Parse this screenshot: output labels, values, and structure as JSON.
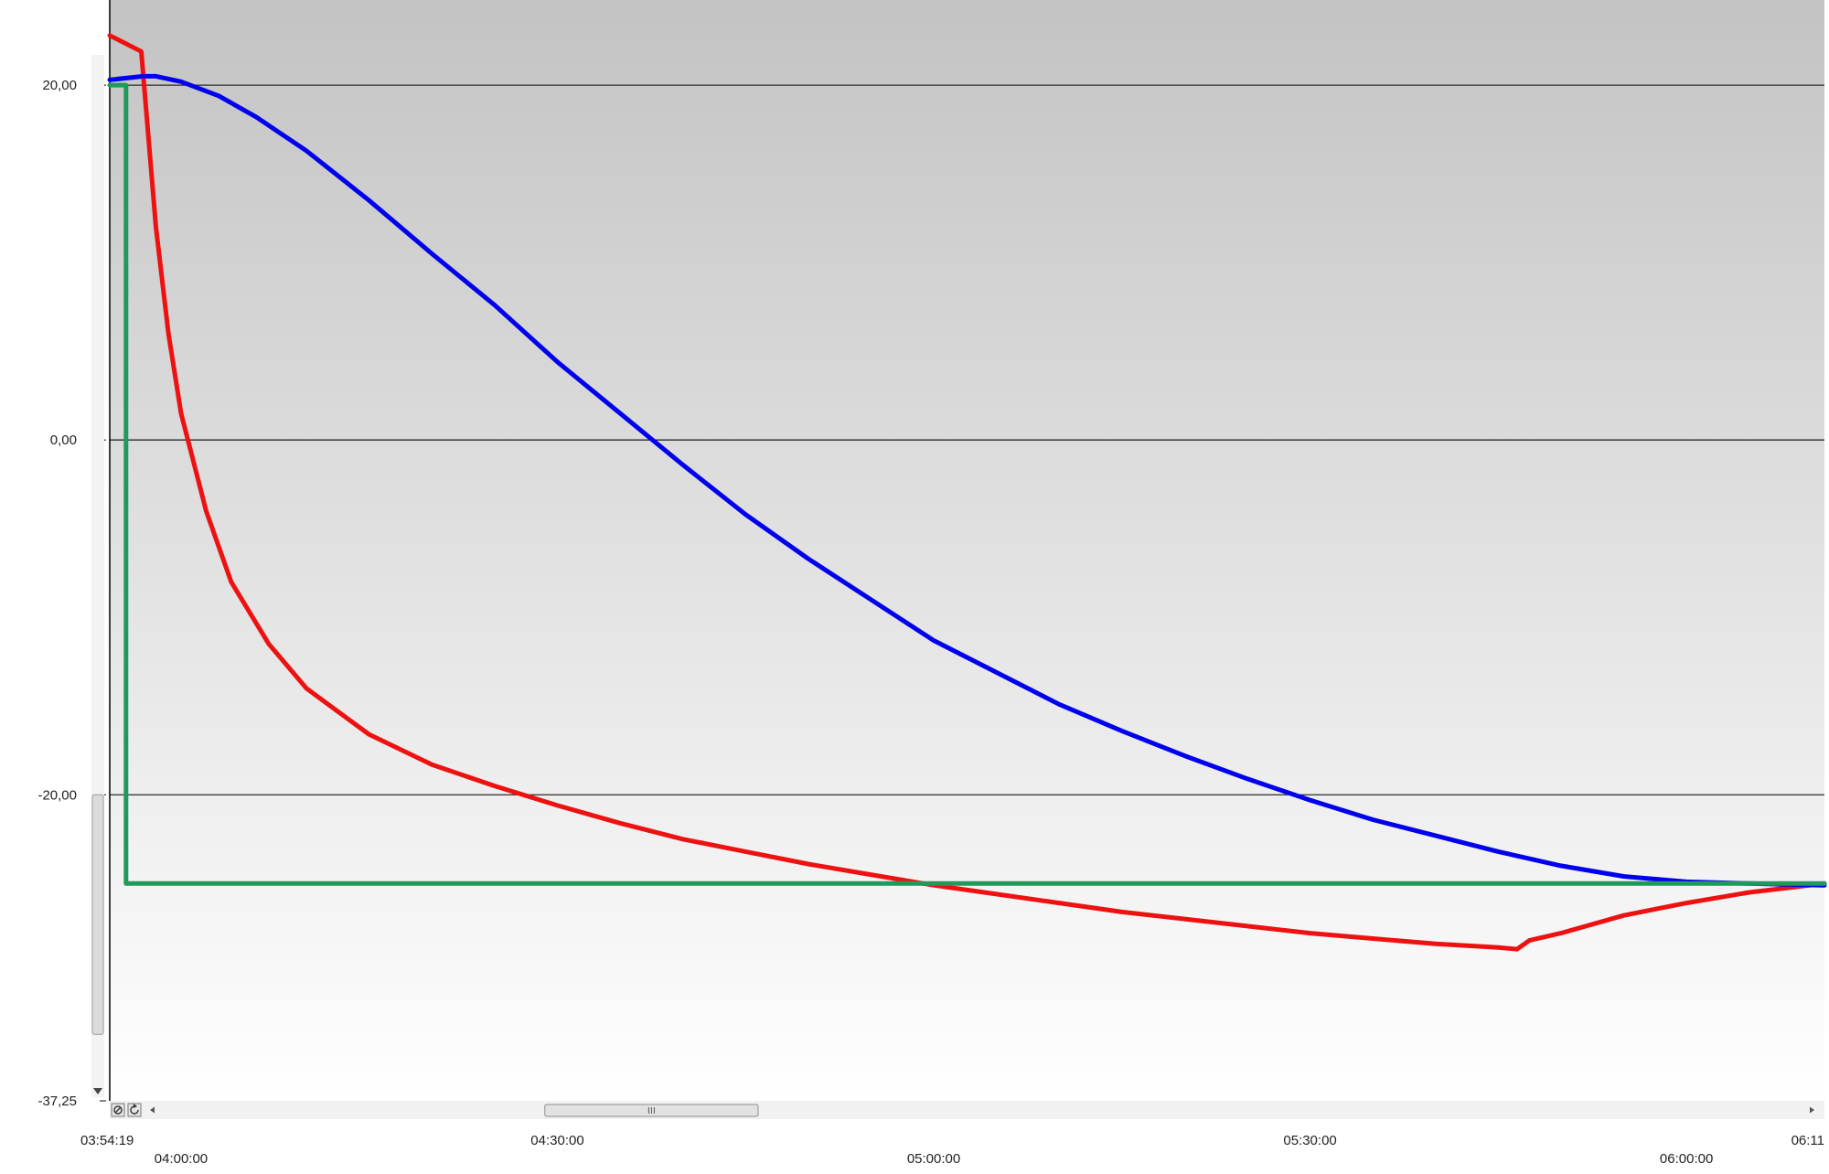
{
  "chart_data": {
    "type": "line",
    "title": "",
    "xlabel": "",
    "ylabel": "",
    "ylim": [
      -37.25,
      24.8
    ],
    "xlim": [
      "03:54:19",
      "06:11:00"
    ],
    "grid": {
      "horizontal": true,
      "vertical": false
    },
    "legend": "none",
    "y_ticks": [
      {
        "value": 20,
        "label": "20,00"
      },
      {
        "value": 0,
        "label": "0,00"
      },
      {
        "value": -20,
        "label": "-20,00"
      },
      {
        "value": -37.25,
        "label": "-37,25"
      }
    ],
    "x_ticks": [
      {
        "time": "03:54:19",
        "label": "03:54:19",
        "row": 1,
        "anchor": "start"
      },
      {
        "time": "04:00:00",
        "label": "04:00:00",
        "row": 2,
        "anchor": "middle"
      },
      {
        "time": "04:30:00",
        "label": "04:30:00",
        "row": 1,
        "anchor": "middle"
      },
      {
        "time": "05:00:00",
        "label": "05:00:00",
        "row": 2,
        "anchor": "middle"
      },
      {
        "time": "05:30:00",
        "label": "05:30:00",
        "row": 1,
        "anchor": "middle"
      },
      {
        "time": "06:00:00",
        "label": "06:00:00",
        "row": 2,
        "anchor": "middle"
      },
      {
        "time": "06:11:00",
        "label": "06:11",
        "row": 1,
        "anchor": "end"
      }
    ],
    "series": [
      {
        "color": "#ee1111",
        "points": [
          [
            "03:54:19",
            22.8
          ],
          [
            "03:56:50",
            21.9
          ],
          [
            "03:58:00",
            12.0
          ],
          [
            "03:59:00",
            6.0
          ],
          [
            "04:00:00",
            1.5
          ],
          [
            "04:02:00",
            -4.0
          ],
          [
            "04:04:00",
            -8.0
          ],
          [
            "04:07:00",
            -11.5
          ],
          [
            "04:10:00",
            -14.0
          ],
          [
            "04:15:00",
            -16.6
          ],
          [
            "04:20:00",
            -18.3
          ],
          [
            "04:25:00",
            -19.5
          ],
          [
            "04:30:00",
            -20.6
          ],
          [
            "04:35:00",
            -21.6
          ],
          [
            "04:40:00",
            -22.5
          ],
          [
            "04:45:00",
            -23.2
          ],
          [
            "04:50:00",
            -23.9
          ],
          [
            "04:55:00",
            -24.5
          ],
          [
            "05:00:00",
            -25.1
          ],
          [
            "05:05:00",
            -25.6
          ],
          [
            "05:10:00",
            -26.1
          ],
          [
            "05:15:00",
            -26.6
          ],
          [
            "05:20:00",
            -27.0
          ],
          [
            "05:25:00",
            -27.4
          ],
          [
            "05:30:00",
            -27.8
          ],
          [
            "05:35:00",
            -28.1
          ],
          [
            "05:40:00",
            -28.4
          ],
          [
            "05:45:00",
            -28.6
          ],
          [
            "05:46:30",
            -28.7
          ],
          [
            "05:47:30",
            -28.2
          ],
          [
            "05:50:00",
            -27.8
          ],
          [
            "05:55:00",
            -26.8
          ],
          [
            "06:00:00",
            -26.1
          ],
          [
            "06:05:00",
            -25.5
          ],
          [
            "06:11:00",
            -25.0
          ]
        ]
      },
      {
        "color": "#0000ee",
        "points": [
          [
            "03:54:19",
            20.3
          ],
          [
            "03:57:00",
            20.5
          ],
          [
            "03:58:00",
            20.5
          ],
          [
            "04:00:00",
            20.2
          ],
          [
            "04:03:00",
            19.4
          ],
          [
            "04:06:00",
            18.2
          ],
          [
            "04:10:00",
            16.3
          ],
          [
            "04:15:00",
            13.5
          ],
          [
            "04:20:00",
            10.5
          ],
          [
            "04:25:00",
            7.6
          ],
          [
            "04:30:00",
            4.4
          ],
          [
            "04:35:00",
            1.5
          ],
          [
            "04:40:00",
            -1.4
          ],
          [
            "04:45:00",
            -4.2
          ],
          [
            "04:50:00",
            -6.7
          ],
          [
            "04:55:00",
            -9.0
          ],
          [
            "05:00:00",
            -11.3
          ],
          [
            "05:05:00",
            -13.1
          ],
          [
            "05:10:00",
            -14.9
          ],
          [
            "05:15:00",
            -16.4
          ],
          [
            "05:20:00",
            -17.8
          ],
          [
            "05:25:00",
            -19.1
          ],
          [
            "05:30:00",
            -20.3
          ],
          [
            "05:35:00",
            -21.4
          ],
          [
            "05:40:00",
            -22.3
          ],
          [
            "05:45:00",
            -23.2
          ],
          [
            "05:50:00",
            -24.0
          ],
          [
            "05:55:00",
            -24.6
          ],
          [
            "06:00:00",
            -24.9
          ],
          [
            "06:05:00",
            -25.0
          ],
          [
            "06:11:00",
            -25.1
          ]
        ]
      },
      {
        "color": "#1f9a5a",
        "points": [
          [
            "03:54:19",
            20.0
          ],
          [
            "03:55:37",
            20.0
          ],
          [
            "03:55:37",
            -25.0
          ],
          [
            "06:11:00",
            -25.0
          ]
        ]
      }
    ]
  },
  "controls": {
    "scroll_left_icon": "chevron-left-icon",
    "scroll_right_icon": "chevron-right-icon",
    "zoom_reset_icon": "zoom-reset-icon",
    "refresh_icon": "refresh-icon",
    "y_scroll_down_icon": "chevron-down-icon",
    "h_thumb_range": [
      "04:29:00",
      "04:46:00"
    ],
    "v_thumb_range": [
      -20.0,
      -33.5
    ]
  }
}
